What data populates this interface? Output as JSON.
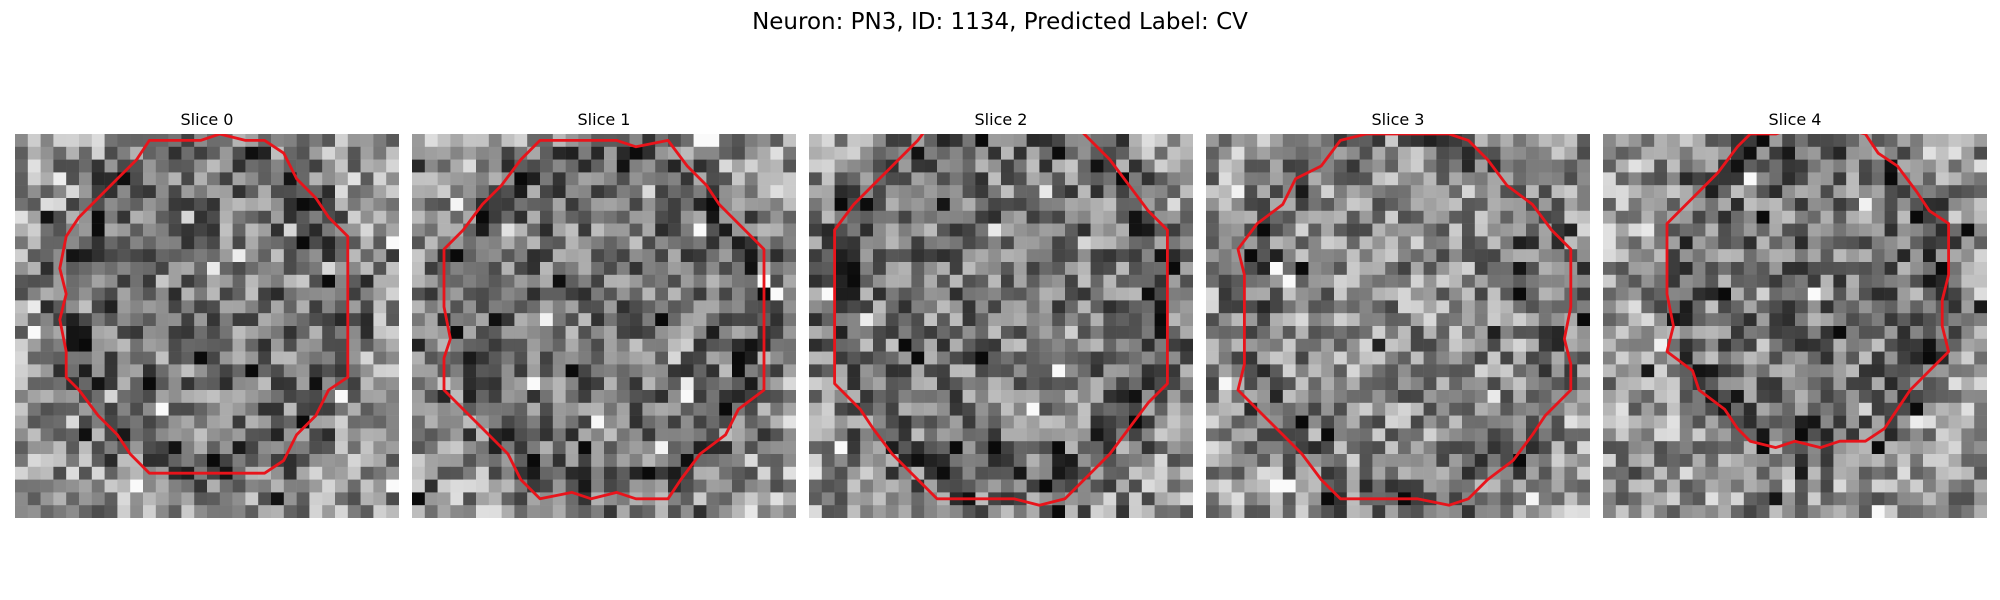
{
  "figure": {
    "title": "Neuron: PN3, ID: 1134, Predicted Label: CV"
  },
  "slices": [
    {
      "title": "Slice 0"
    },
    {
      "title": "Slice 1"
    },
    {
      "title": "Slice 2"
    },
    {
      "title": "Slice 3"
    },
    {
      "title": "Slice 4"
    }
  ],
  "colors": {
    "contour": "#e8141b",
    "background": "#ffffff"
  }
}
